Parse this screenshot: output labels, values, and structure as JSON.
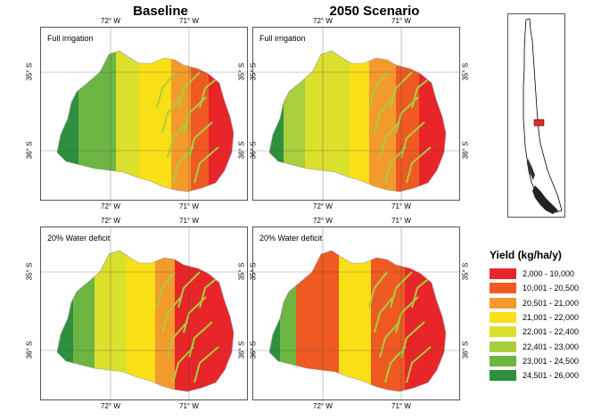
{
  "titles": {
    "left": "Baseline",
    "right": "2050 Scenario"
  },
  "scenarios": {
    "full": "Full irrigation",
    "deficit": "20% Water deficit"
  },
  "ticks": {
    "lon1": "72° W",
    "lon2": "71° W",
    "lat1": "35° S",
    "lat2": "36° S"
  },
  "legend": {
    "title": "Yield (kg/ha/y)",
    "classes": [
      {
        "label": "2,000 - 10,000",
        "color": "#e8262a"
      },
      {
        "label": "10,001 - 20,500",
        "color": "#ef5a22"
      },
      {
        "label": "20,501 - 21,000",
        "color": "#f39a2d"
      },
      {
        "label": "21,001 - 22,000",
        "color": "#f9df16"
      },
      {
        "label": "22,001 - 22,400",
        "color": "#dbe02c"
      },
      {
        "label": "22,401 - 23,000",
        "color": "#a9cf3d"
      },
      {
        "label": "23,001 - 24,500",
        "color": "#6cb543"
      },
      {
        "label": "24,501 - 26,000",
        "color": "#2e8f3e"
      }
    ]
  }
}
